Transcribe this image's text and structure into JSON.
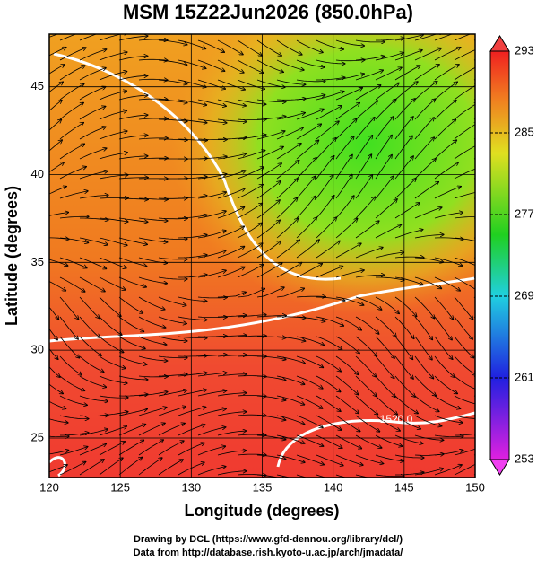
{
  "chart_data": {
    "type": "map",
    "title": "MSM 15Z22Jun2026 (850.0hPa)",
    "xlabel": "Longitude (degrees)",
    "ylabel": "Latitude  (degrees)",
    "xlim": [
      120,
      150
    ],
    "xticks": [
      120,
      125,
      130,
      135,
      140,
      145,
      150
    ],
    "ylim": [
      22.75,
      48.0
    ],
    "yticks": [
      25,
      30,
      35,
      40,
      45
    ],
    "grid": true,
    "colorbar": {
      "lim": [
        253,
        293
      ],
      "ticks": [
        253,
        261,
        269,
        277,
        285,
        293
      ]
    },
    "annotations": [
      "1520.0"
    ],
    "footer": [
      "Drawing by DCL (https://www.gfd-dennou.org/library/dcl/)",
      "Data from http://database.rish.kyoto-u.ac.jp/arch/jmadata/"
    ]
  }
}
